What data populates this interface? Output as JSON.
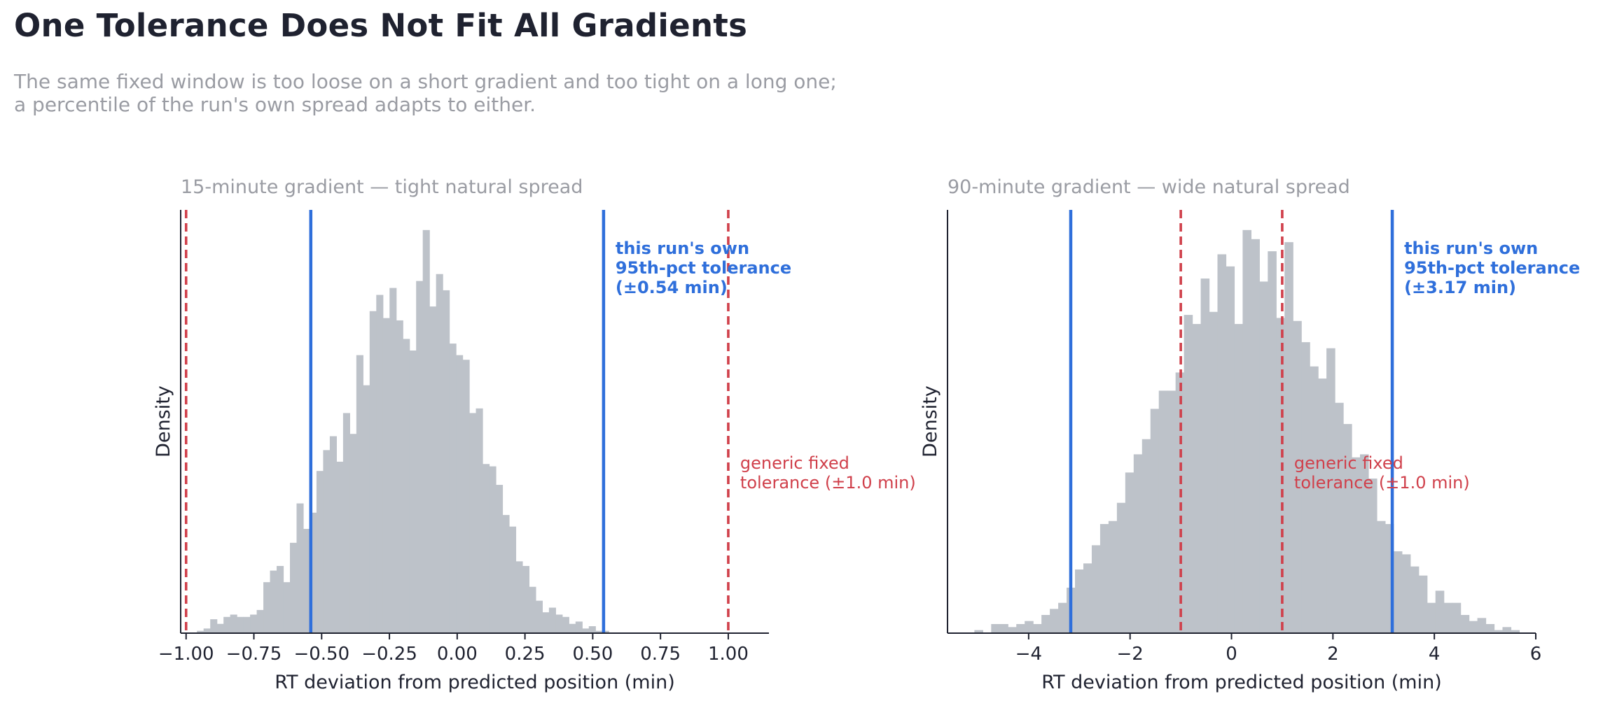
{
  "title": "One Tolerance Does Not Fit All Gradients",
  "subtitle_lines": [
    "The same fixed window is too loose on a short gradient and too tight on a long one;",
    "a percentile of the run's own spread adapts to either."
  ],
  "colors": {
    "bars": "#bdc2c9",
    "own_tolerance": "#2f6fdb",
    "fixed_tolerance": "#d0404b",
    "axis": "#1f2230",
    "panel_title": "#9a9ca3"
  },
  "chart_data": [
    {
      "type": "histogram",
      "panel_title": "15-minute gradient — tight natural spread",
      "xlabel": "RT deviation from predicted position (min)",
      "ylabel": "Density",
      "xlim": [
        -1.02,
        1.15
      ],
      "xticks": [
        -1.0,
        -0.75,
        -0.5,
        -0.25,
        0.0,
        0.25,
        0.5,
        0.75,
        1.0
      ],
      "xtick_labels": [
        "−1.00",
        "−0.75",
        "−0.50",
        "−0.25",
        "0.00",
        "0.25",
        "0.50",
        "0.75",
        "1.00"
      ],
      "bin_start": -0.96,
      "bin_width": 0.0245,
      "counts": [
        1,
        2,
        6,
        4,
        7,
        8,
        7,
        7,
        8,
        10,
        22,
        27,
        29,
        22,
        39,
        56,
        45,
        52,
        70,
        79,
        85,
        74,
        95,
        86,
        120,
        107,
        139,
        146,
        136,
        149,
        135,
        127,
        122,
        152,
        174,
        141,
        155,
        148,
        125,
        120,
        118,
        95,
        97,
        73,
        72,
        64,
        51,
        46,
        31,
        29,
        20,
        14,
        9,
        11,
        8,
        7,
        4,
        5,
        2,
        3,
        1,
        1
      ],
      "own_tolerance": 0.54,
      "fixed_tolerance": 1.0,
      "own_label_lines": [
        "this run's own",
        "95th-pct tolerance",
        "(±0.54 min)"
      ],
      "fixed_label_lines": [
        "generic fixed",
        "tolerance (±1.0 min)"
      ]
    },
    {
      "type": "histogram",
      "panel_title": "90-minute gradient — wide natural spread",
      "xlabel": "RT deviation from predicted position (min)",
      "ylabel": "Density",
      "xlim": [
        -5.6,
        6.0
      ],
      "xticks": [
        -4,
        -2,
        0,
        2,
        4,
        6
      ],
      "xtick_labels": [
        "−4",
        "−2",
        "0",
        "2",
        "4",
        "6"
      ],
      "bin_start": -5.07,
      "bin_width": 0.1653,
      "counts": [
        1,
        0,
        3,
        3,
        2,
        3,
        4,
        3,
        6,
        8,
        10,
        15,
        21,
        23,
        29,
        36,
        37,
        43,
        53,
        59,
        64,
        74,
        80,
        80,
        86,
        105,
        102,
        117,
        106,
        125,
        121,
        102,
        133,
        130,
        116,
        126,
        104,
        129,
        103,
        96,
        88,
        84,
        94,
        76,
        69,
        58,
        59,
        51,
        37,
        36,
        27,
        26,
        22,
        19,
        10,
        14,
        10,
        10,
        6,
        4,
        5,
        3,
        1,
        2,
        1
      ],
      "own_tolerance": 3.17,
      "fixed_tolerance": 1.0,
      "own_label_lines": [
        "this run's own",
        "95th-pct tolerance",
        "(±3.17 min)"
      ],
      "fixed_label_lines": [
        "generic fixed",
        "tolerance (±1.0 min)"
      ]
    }
  ]
}
